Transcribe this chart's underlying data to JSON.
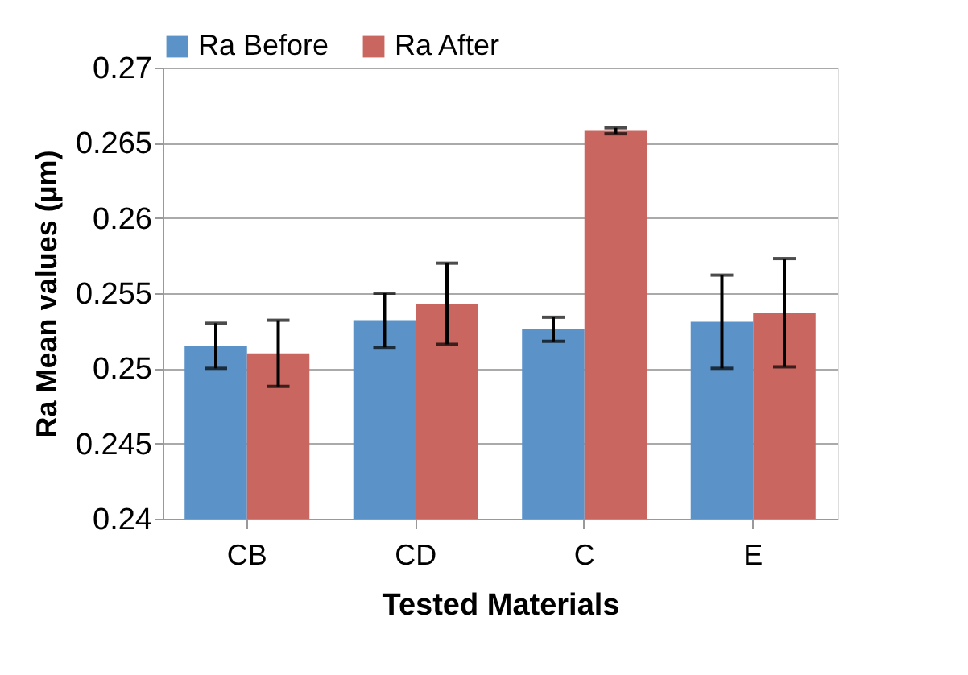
{
  "chart_data": {
    "type": "bar",
    "xlabel": "Tested Materials",
    "ylabel": "Ra Mean values (µm)",
    "categories": [
      "CB",
      "CD",
      "C",
      "E"
    ],
    "series": [
      {
        "name": "Ra Before",
        "color": "#5b93c9",
        "values": [
          0.2515,
          0.2532,
          0.2526,
          0.2531
        ],
        "errors": [
          0.0015,
          0.0018,
          0.0008,
          0.0031
        ]
      },
      {
        "name": "Ra After",
        "color": "#c9665f",
        "values": [
          0.251,
          0.2543,
          0.2658,
          0.2537
        ],
        "errors": [
          0.0022,
          0.0027,
          0.0002,
          0.0036
        ]
      }
    ],
    "ylim": [
      0.24,
      0.27
    ],
    "yticks": [
      0.24,
      0.245,
      0.25,
      0.255,
      0.26,
      0.265,
      0.27
    ],
    "grid": "y",
    "legend": "top"
  }
}
